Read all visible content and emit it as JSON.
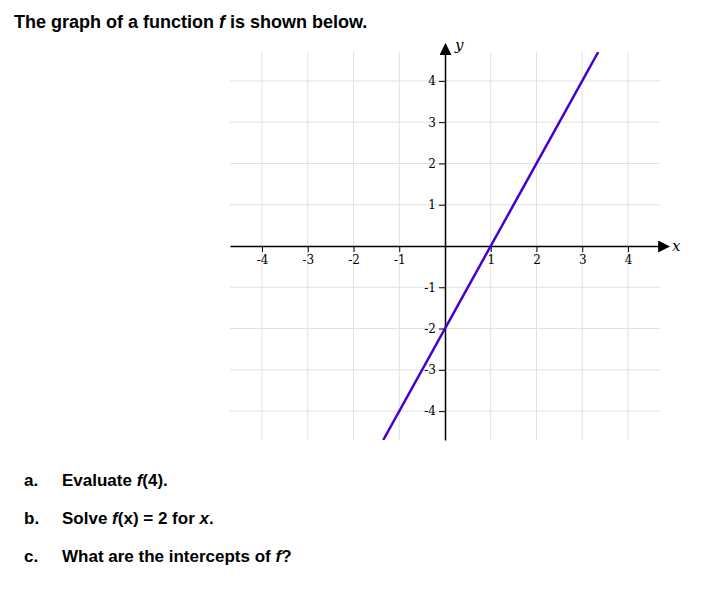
{
  "chart_data": {
    "type": "line",
    "title": [
      "The graph of a function ",
      "f",
      " is shown below."
    ],
    "x_label": "x",
    "y_label": "y",
    "x": [
      -1.35,
      3.35
    ],
    "values": [
      -4.7,
      4.7
    ],
    "color": "#4400cc",
    "xlim": [
      -4.7,
      4.7
    ],
    "ylim": [
      -4.7,
      4.7
    ],
    "xticks": [
      -4,
      -3,
      -2,
      -1,
      1,
      2,
      3,
      4
    ],
    "yticks": [
      -4,
      -3,
      -2,
      -1,
      1,
      2,
      3,
      4
    ],
    "grid": true,
    "annotations": [
      {
        "label": "a.",
        "parts": [
          "Evaluate ",
          "f",
          "(4)."
        ]
      },
      {
        "label": "b.",
        "parts": [
          "Solve ",
          "f",
          "(x) = 2 for ",
          "x",
          "."
        ]
      },
      {
        "label": "c.",
        "parts": [
          "What are the intercepts of ",
          "f",
          "?"
        ]
      }
    ]
  }
}
